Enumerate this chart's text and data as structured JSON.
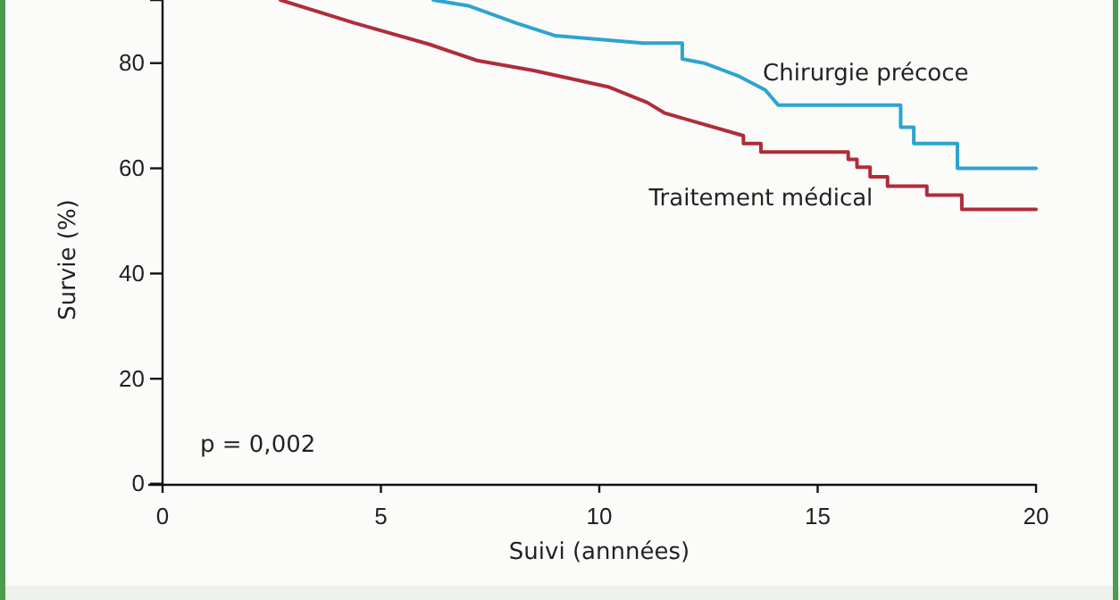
{
  "chart_data": {
    "type": "line",
    "xlabel": "Suivi (annnées)",
    "ylabel": "Survie (%)",
    "xlim": [
      0,
      20
    ],
    "xticks": [
      0,
      5,
      10,
      15,
      20
    ],
    "ylim": [
      0,
      92
    ],
    "yticks": [
      0,
      20,
      40,
      60,
      80
    ],
    "grid": false,
    "legend": false,
    "marker": "none",
    "line_style": "solid",
    "annotations": [
      "p = 0,002"
    ],
    "series": [
      {
        "name": "Chirurgie précoce",
        "color": "#2ea3d0",
        "x": [
          6.2,
          7.0,
          8.1,
          9.0,
          11.0,
          11.9,
          11.9,
          12.4,
          13.2,
          13.8,
          14.1,
          16.9,
          16.9,
          17.2,
          17.2,
          18.2,
          18.2,
          20
        ],
        "values": [
          92,
          90.9,
          87.6,
          85.2,
          83.8,
          83.8,
          80.8,
          80,
          77.5,
          74.9,
          72,
          72,
          67.8,
          67.8,
          64.7,
          64.7,
          60,
          60
        ]
      },
      {
        "name": "Traitement médical",
        "color": "#b02c3a",
        "x": [
          2.7,
          4.4,
          6.1,
          7.2,
          8.5,
          10.2,
          11.1,
          11.5,
          13.3,
          13.3,
          13.7,
          13.7,
          15.7,
          15.7,
          15.9,
          15.9,
          16.2,
          16.2,
          16.6,
          16.6,
          17.5,
          17.5,
          18.3,
          18.3,
          20
        ],
        "values": [
          92,
          87.6,
          83.6,
          80.5,
          78.6,
          75.5,
          72.5,
          70.5,
          66.2,
          64.7,
          64.7,
          63.1,
          63.1,
          61.7,
          61.7,
          60.2,
          60.2,
          58.4,
          58.4,
          56.6,
          56.6,
          54.9,
          54.9,
          52.2,
          52.2
        ]
      }
    ]
  }
}
